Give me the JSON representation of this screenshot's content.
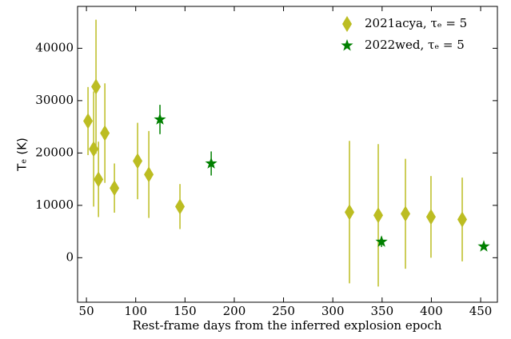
{
  "chart_data": {
    "type": "scatter",
    "x_label": "Rest-frame days from the inferred explosion epoch",
    "y_label": "Tₑ (K)",
    "xlim": [
      41,
      467
    ],
    "ylim": [
      -8500,
      48000
    ],
    "xticks": [
      50,
      100,
      150,
      200,
      250,
      300,
      350,
      400,
      450
    ],
    "yticks": [
      0,
      10000,
      20000,
      30000,
      40000
    ],
    "legend": "upper right",
    "series": [
      {
        "name": "2021acya, τₑ = 5",
        "color": "#bcbd22",
        "marker": "diamond",
        "x": [
          51.6,
          57.3,
          59.7,
          62.2,
          68.7,
          78.4,
          101.9,
          113.3,
          144.9,
          316.9,
          346.1,
          373.7,
          399.6,
          431.3
        ],
        "values": [
          26100,
          20760,
          32670,
          14960,
          23800,
          13300,
          18470,
          15900,
          9770,
          8700,
          8100,
          8400,
          7800,
          7300
        ],
        "errors": [
          6500,
          11000,
          12800,
          7200,
          9500,
          4700,
          7300,
          8300,
          4300,
          13600,
          13600,
          10500,
          7800,
          8000
        ]
      },
      {
        "name": "2022wed, τₑ = 5",
        "color": "#008000",
        "marker": "star",
        "x": [
          124.6,
          176.6,
          349.4,
          453.2
        ],
        "values": [
          26400,
          18000,
          3050,
          2140
        ],
        "errors": [
          2800,
          2300,
          1000,
          500
        ]
      }
    ]
  }
}
